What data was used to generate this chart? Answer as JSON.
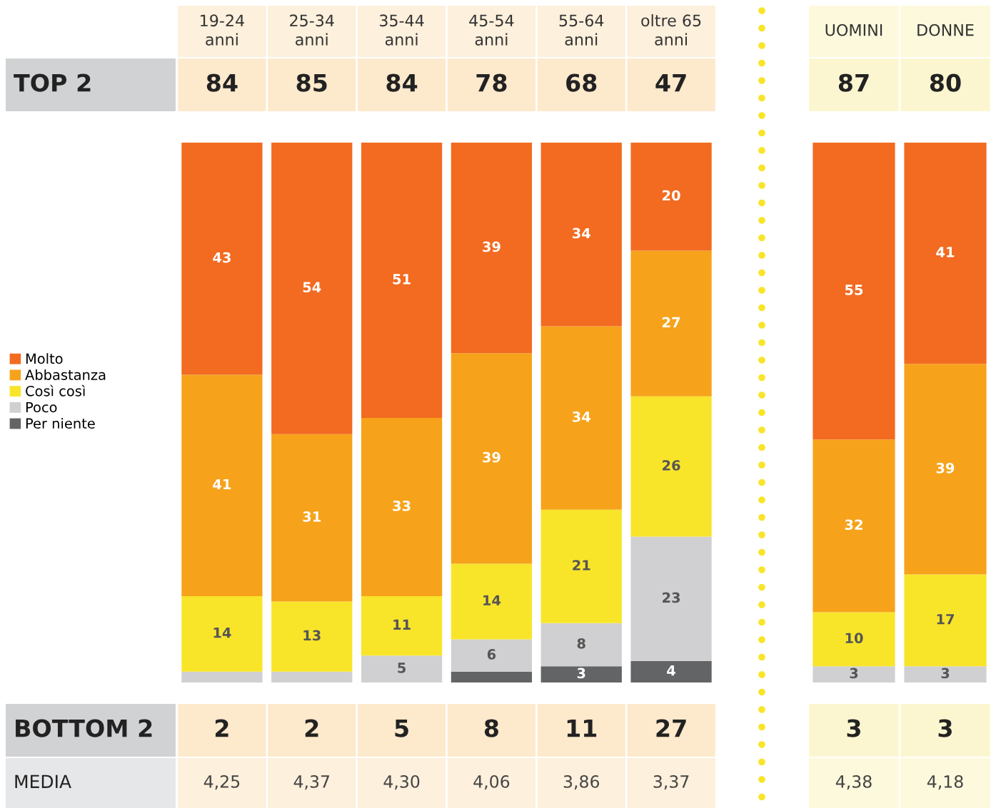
{
  "chart_data": [
    {
      "type": "bar",
      "stacked": true,
      "legend": "left",
      "categories": [
        "19-24 anni",
        "25-34 anni",
        "35-44 anni",
        "45-54 anni",
        "55-64 anni",
        "oltre 65 anni"
      ],
      "series": [
        {
          "name": "Per niente",
          "color": "#636466",
          "values": [
            0,
            0,
            0,
            2,
            3,
            4
          ],
          "value_labels": [
            null,
            null,
            null,
            null,
            "3",
            "4"
          ]
        },
        {
          "name": "Poco",
          "color": "#d0d0d2",
          "values": [
            2,
            2,
            5,
            6,
            8,
            23
          ],
          "value_labels": [
            null,
            null,
            "5",
            "6",
            "8",
            "23"
          ]
        },
        {
          "name": "Così così",
          "color": "#f8e52a",
          "values": [
            14,
            13,
            11,
            14,
            21,
            26
          ],
          "value_labels": [
            "14",
            "13",
            "11",
            "14",
            "21",
            "26"
          ]
        },
        {
          "name": "Abbastanza",
          "color": "#f6a31b",
          "values": [
            41,
            31,
            33,
            39,
            34,
            27
          ],
          "value_labels": [
            "41",
            "31",
            "33",
            "39",
            "34",
            "27"
          ]
        },
        {
          "name": "Molto",
          "color": "#f26b21",
          "values": [
            43,
            54,
            51,
            39,
            34,
            20
          ],
          "value_labels": [
            "43",
            "54",
            "51",
            "39",
            "34",
            "20"
          ]
        }
      ],
      "annotations": [
        "TOP 2",
        "84",
        "85",
        "84",
        "78",
        "68",
        "47",
        "BOTTOM 2",
        "2",
        "2",
        "5",
        "8",
        "11",
        "27",
        "MEDIA",
        "4,25",
        "4,37",
        "4,30",
        "4,06",
        "3,86",
        "3,37"
      ]
    },
    {
      "type": "bar",
      "stacked": true,
      "categories": [
        "UOMINI",
        "DONNE"
      ],
      "series": [
        {
          "color": "#d0d0d2",
          "values": [
            3,
            3
          ],
          "value_labels": [
            "3",
            "3"
          ]
        },
        {
          "color": "#f8e52a",
          "values": [
            10,
            17
          ],
          "value_labels": [
            "10",
            "17"
          ]
        },
        {
          "color": "#f6a31b",
          "values": [
            32,
            39
          ],
          "value_labels": [
            "32",
            "39"
          ]
        },
        {
          "color": "#f26b21",
          "values": [
            55,
            41
          ],
          "value_labels": [
            "55",
            "41"
          ]
        }
      ],
      "annotations": [
        "87",
        "80",
        "3",
        "3",
        "4,38",
        "4,18"
      ]
    }
  ]
}
